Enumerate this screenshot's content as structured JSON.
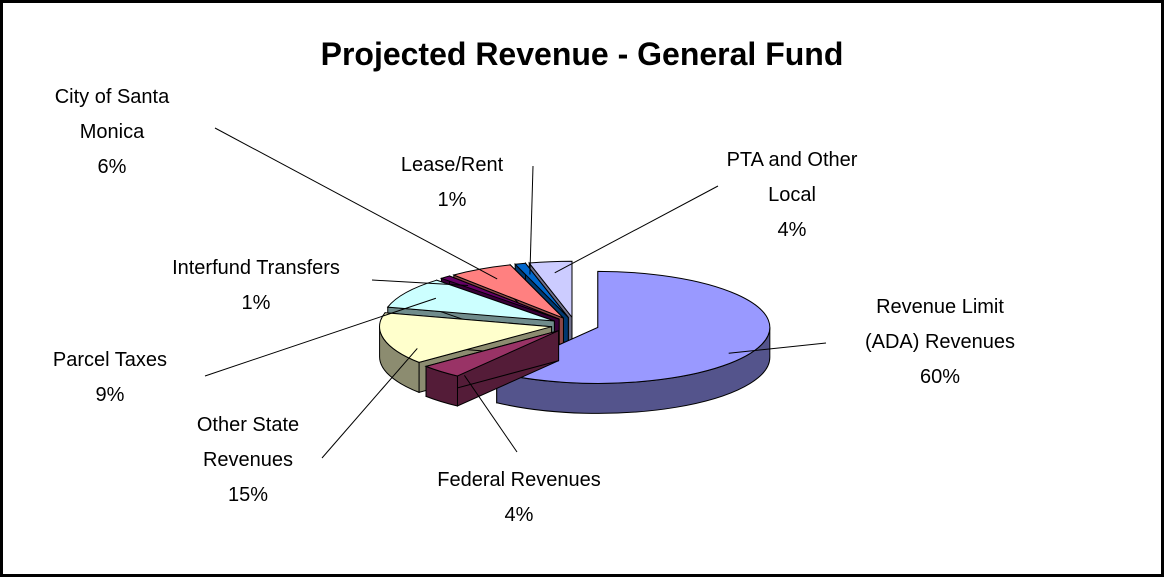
{
  "chart_data": {
    "type": "pie3d",
    "title": "Projected Revenue - General Fund",
    "categories": [
      "Revenue Limit (ADA) Revenues",
      "Federal Revenues",
      "Other State Revenues",
      "Parcel Taxes",
      "Interfund Transfers",
      "City of Santa Monica",
      "Lease/Rent",
      "PTA and Other Local"
    ],
    "values": [
      60,
      4,
      15,
      9,
      1,
      6,
      1,
      4
    ],
    "value_labels": [
      "60%",
      "4%",
      "15%",
      "9%",
      "1%",
      "6%",
      "1%",
      "4%"
    ],
    "colors": [
      "#9999ff",
      "#993366",
      "#ffffcc",
      "#ccffff",
      "#660066",
      "#ff8080",
      "#0066cc",
      "#ccccff"
    ]
  }
}
